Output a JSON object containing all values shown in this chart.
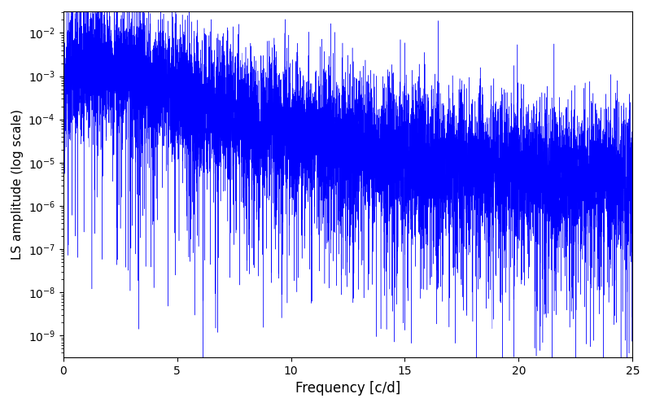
{
  "title": "",
  "xlabel": "Frequency [c/d]",
  "ylabel": "LS amplitude (log scale)",
  "line_color": "#0000ff",
  "xlim": [
    0,
    25
  ],
  "ylim_bottom_exp": -9.5,
  "ylim_top_exp": -1.5,
  "xfreq_max": 25.0,
  "n_points": 10000,
  "seed": 77,
  "background_color": "#ffffff",
  "linewidth": 0.3,
  "figsize": [
    8.0,
    5.0
  ],
  "dpi": 100
}
